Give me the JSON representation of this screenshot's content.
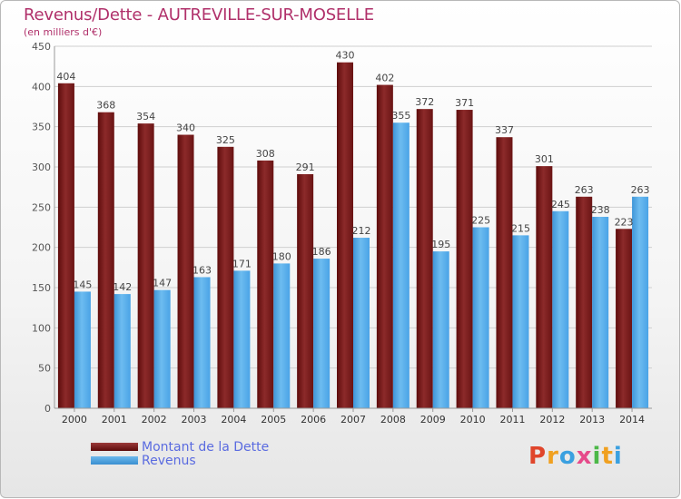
{
  "title": "Revenus/Dette - AUTREVILLE-SUR-MOSELLE",
  "subtitle": "(en milliers d'€)",
  "logo_text": "Proxiti",
  "chart_data": {
    "type": "bar",
    "title": "Revenus/Dette - AUTREVILLE-SUR-MOSELLE",
    "subtitle": "(en milliers d'€)",
    "categories": [
      "2000",
      "2001",
      "2002",
      "2003",
      "2004",
      "2005",
      "2006",
      "2007",
      "2008",
      "2009",
      "2010",
      "2011",
      "2012",
      "2013",
      "2014"
    ],
    "series": [
      {
        "name": "Montant de la Dette",
        "color": "#7a1f1f",
        "values": [
          404,
          368,
          354,
          340,
          325,
          308,
          291,
          430,
          402,
          372,
          371,
          337,
          301,
          263,
          223
        ]
      },
      {
        "name": "Revenus",
        "color": "#4aa3e6",
        "values": [
          145,
          142,
          147,
          163,
          171,
          180,
          186,
          212,
          355,
          195,
          225,
          215,
          245,
          238,
          263
        ]
      }
    ],
    "ylim": [
      0,
      450
    ],
    "yticks": [
      0,
      50,
      100,
      150,
      200,
      250,
      300,
      350,
      400,
      450
    ],
    "grid": true,
    "legend_position": "bottom-left"
  },
  "legend": [
    {
      "label": "Montant de la Dette"
    },
    {
      "label": "Revenus"
    }
  ]
}
